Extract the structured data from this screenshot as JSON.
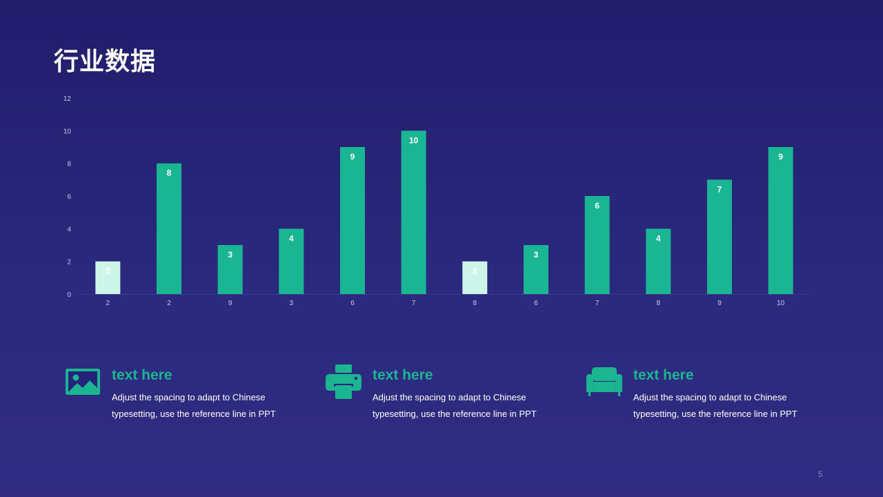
{
  "slide": {
    "title": "行业数据",
    "page_number": "5"
  },
  "chart_data": {
    "type": "bar",
    "categories": [
      "2",
      "2",
      "9",
      "3",
      "6",
      "7",
      "8",
      "6",
      "7",
      "8",
      "9",
      "10"
    ],
    "values": [
      2,
      8,
      3,
      4,
      9,
      10,
      2,
      3,
      6,
      4,
      7,
      9
    ],
    "data_labels": [
      "2",
      "8",
      "3",
      "4",
      "9",
      "10",
      "2",
      "3",
      "6",
      "4",
      "7",
      "9"
    ],
    "highlight_indices": [
      0,
      6
    ],
    "ylim": [
      0,
      12
    ],
    "yticks": [
      0,
      2,
      4,
      6,
      8,
      10,
      12
    ],
    "title": "",
    "xlabel": "",
    "ylabel": "",
    "grid": false,
    "colors": {
      "bar": "#1ab592",
      "bar_highlight": "#cdf5ea",
      "axis": "#3e3a8c",
      "tick_text": "#c9c7ea"
    }
  },
  "features": [
    {
      "icon": "image-icon",
      "heading": "text here",
      "description": "Adjust the spacing to adapt to Chinese typesetting, use the reference line in PPT"
    },
    {
      "icon": "printer-icon",
      "heading": "text here",
      "description": "Adjust the spacing to adapt to Chinese typesetting, use the reference line in PPT"
    },
    {
      "icon": "sofa-icon",
      "heading": "text here",
      "description": "Adjust the spacing to adapt to Chinese typesetting, use the reference line in PPT"
    }
  ],
  "colors": {
    "accent": "#1cb592",
    "background_top": "#211d6c",
    "background_bottom": "#2f2c82"
  }
}
